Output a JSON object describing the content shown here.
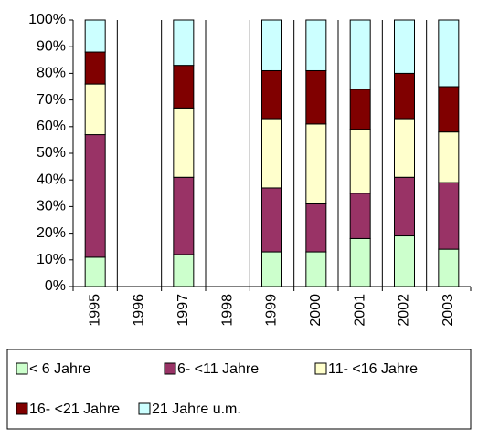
{
  "chart_data": {
    "type": "stacked_bar_100",
    "categories": [
      "1995",
      "1996",
      "1997",
      "1998",
      "1999",
      "2000",
      "2001",
      "2002",
      "2003"
    ],
    "series": [
      {
        "name": "< 6 Jahre",
        "color": "#ccffcc",
        "values": [
          11,
          null,
          12,
          null,
          13,
          13,
          18,
          19,
          14
        ]
      },
      {
        "name": "6- <11 Jahre",
        "color": "#993366",
        "values": [
          46,
          null,
          29,
          null,
          24,
          18,
          17,
          22,
          25
        ]
      },
      {
        "name": "11- <16 Jahre",
        "color": "#ffffcc",
        "values": [
          19,
          null,
          26,
          null,
          26,
          30,
          24,
          22,
          19
        ]
      },
      {
        "name": "16- <21 Jahre",
        "color": "#800000",
        "values": [
          12,
          null,
          16,
          null,
          18,
          20,
          15,
          17,
          17
        ]
      },
      {
        "name": "21 Jahre u.m.",
        "color": "#ccffff",
        "values": [
          12,
          null,
          17,
          null,
          19,
          19,
          26,
          20,
          25
        ]
      }
    ],
    "ylim": [
      0,
      100
    ],
    "yticks": [
      {
        "value": 0,
        "label": "0%"
      },
      {
        "value": 10,
        "label": "10%"
      },
      {
        "value": 20,
        "label": "20%"
      },
      {
        "value": 30,
        "label": "30%"
      },
      {
        "value": 40,
        "label": "40%"
      },
      {
        "value": 50,
        "label": "50%"
      },
      {
        "value": 60,
        "label": "60%"
      },
      {
        "value": 70,
        "label": "70%"
      },
      {
        "value": 80,
        "label": "80%"
      },
      {
        "value": 90,
        "label": "90%"
      },
      {
        "value": 100,
        "label": "100%"
      }
    ],
    "grid": "x",
    "legend": "bottom"
  }
}
